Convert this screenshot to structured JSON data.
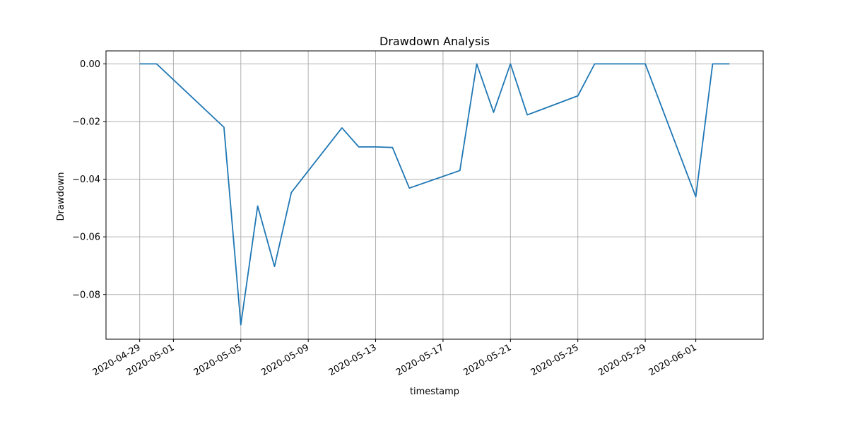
{
  "chart_data": {
    "type": "line",
    "title": "Drawdown Analysis",
    "xlabel": "timestamp",
    "ylabel": "Drawdown",
    "grid": true,
    "legend": "none",
    "line_color": "#1f77b4",
    "xlim": [
      "2020-04-27",
      "2020-06-05"
    ],
    "ylim": [
      -0.0955,
      0.0045
    ],
    "x_ticks": [
      "2020-04-29",
      "2020-05-01",
      "2020-05-05",
      "2020-05-09",
      "2020-05-13",
      "2020-05-17",
      "2020-05-21",
      "2020-05-25",
      "2020-05-29",
      "2020-06-01"
    ],
    "y_ticks": [
      0.0,
      -0.02,
      -0.04,
      -0.06,
      -0.08
    ],
    "y_tick_labels": [
      "0.00",
      "−0.02",
      "−0.04",
      "−0.06",
      "−0.08"
    ],
    "x": [
      "2020-04-29",
      "2020-04-30",
      "2020-05-04",
      "2020-05-05",
      "2020-05-06",
      "2020-05-07",
      "2020-05-08",
      "2020-05-11",
      "2020-05-12",
      "2020-05-13",
      "2020-05-14",
      "2020-05-15",
      "2020-05-18",
      "2020-05-19",
      "2020-05-20",
      "2020-05-21",
      "2020-05-22",
      "2020-05-25",
      "2020-05-26",
      "2020-05-27",
      "2020-05-28",
      "2020-05-29",
      "2020-06-01",
      "2020-06-02",
      "2020-06-03"
    ],
    "y": [
      0.0,
      0.0,
      -0.022,
      -0.0905,
      -0.0493,
      -0.0703,
      -0.0446,
      -0.0222,
      -0.0288,
      -0.0288,
      -0.029,
      -0.0431,
      -0.037,
      0.0,
      -0.0168,
      0.0,
      -0.0177,
      -0.0111,
      0.0,
      0.0,
      0.0,
      0.0,
      -0.0461,
      0.0,
      0.0
    ]
  }
}
